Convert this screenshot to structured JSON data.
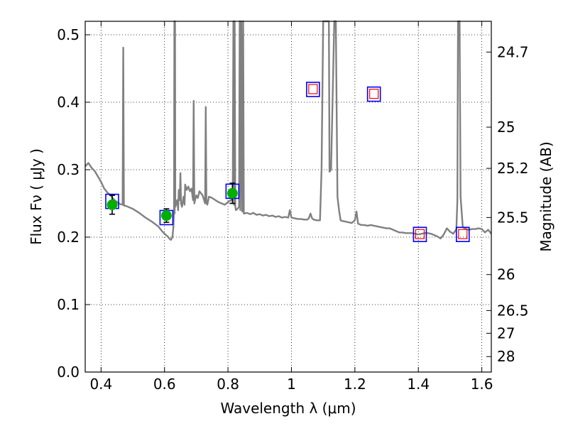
{
  "chart_data": {
    "type": "scatter",
    "title": "",
    "xlabel": "Wavelength  λ (μm)",
    "ylabel": "Flux  Fν  ( μJy )",
    "ylabel_right": "Magnitude (AB)",
    "xlim": [
      0.35,
      1.63
    ],
    "ylim": [
      0.0,
      0.52
    ],
    "grid": true,
    "grid_style": "dotted",
    "x_ticks": [
      0.4,
      0.6,
      0.8,
      1.0,
      1.2,
      1.4,
      1.6
    ],
    "x_tick_labels": [
      "0.4",
      "0.6",
      "0.8",
      "1",
      "1.2",
      "1.4",
      "1.6"
    ],
    "y_ticks": [
      0.0,
      0.1,
      0.2,
      0.3,
      0.4,
      0.5
    ],
    "y_tick_labels": [
      "0.0",
      "0.1",
      "0.2",
      "0.3",
      "0.4",
      "0.5"
    ],
    "right_ticks": [
      {
        "label": "24.7",
        "flux": 0.4744
      },
      {
        "label": "25",
        "flux": 0.3631
      },
      {
        "label": "25.2",
        "flux": 0.302
      },
      {
        "label": "25.5",
        "flux": 0.2291
      },
      {
        "label": "26",
        "flux": 0.1445
      },
      {
        "label": "26.5",
        "flux": 0.0912
      },
      {
        "label": "27",
        "flux": 0.0575
      },
      {
        "label": "28",
        "flux": 0.0229
      }
    ],
    "colors": {
      "spectrum": "#808080",
      "observed_marker": "#00b000",
      "model_box_outer": "#0000ff",
      "model_box_inner": "#ff0000",
      "errorbar": "#000000",
      "grid": "#000000"
    },
    "series": [
      {
        "kind": "spectrum",
        "points": [
          [
            0.35,
            0.305
          ],
          [
            0.36,
            0.31
          ],
          [
            0.37,
            0.303
          ],
          [
            0.38,
            0.298
          ],
          [
            0.39,
            0.29
          ],
          [
            0.4,
            0.282
          ],
          [
            0.41,
            0.272
          ],
          [
            0.42,
            0.266
          ],
          [
            0.43,
            0.262
          ],
          [
            0.44,
            0.256
          ],
          [
            0.45,
            0.252
          ],
          [
            0.46,
            0.249
          ],
          [
            0.468,
            0.248
          ],
          [
            0.47,
            0.481
          ],
          [
            0.472,
            0.247
          ],
          [
            0.48,
            0.246
          ],
          [
            0.5,
            0.242
          ],
          [
            0.52,
            0.236
          ],
          [
            0.54,
            0.229
          ],
          [
            0.56,
            0.223
          ],
          [
            0.58,
            0.216
          ],
          [
            0.59,
            0.21
          ],
          [
            0.6,
            0.205
          ],
          [
            0.61,
            0.201
          ],
          [
            0.615,
            0.198
          ],
          [
            0.62,
            0.196
          ],
          [
            0.625,
            0.2
          ],
          [
            0.628,
            0.215
          ],
          [
            0.63,
            0.24
          ],
          [
            0.631,
            0.54
          ],
          [
            0.632,
            0.235
          ],
          [
            0.633,
            0.54
          ],
          [
            0.634,
            0.245
          ],
          [
            0.64,
            0.255
          ],
          [
            0.643,
            0.24
          ],
          [
            0.645,
            0.27
          ],
          [
            0.648,
            0.255
          ],
          [
            0.65,
            0.295
          ],
          [
            0.652,
            0.25
          ],
          [
            0.655,
            0.245
          ],
          [
            0.66,
            0.26
          ],
          [
            0.663,
            0.248
          ],
          [
            0.665,
            0.278
          ],
          [
            0.67,
            0.27
          ],
          [
            0.675,
            0.275
          ],
          [
            0.68,
            0.268
          ],
          [
            0.685,
            0.272
          ],
          [
            0.69,
            0.255
          ],
          [
            0.692,
            0.402
          ],
          [
            0.694,
            0.25
          ],
          [
            0.7,
            0.262
          ],
          [
            0.705,
            0.258
          ],
          [
            0.71,
            0.268
          ],
          [
            0.72,
            0.262
          ],
          [
            0.728,
            0.25
          ],
          [
            0.73,
            0.393
          ],
          [
            0.732,
            0.252
          ],
          [
            0.735,
            0.248
          ],
          [
            0.74,
            0.26
          ],
          [
            0.75,
            0.258
          ],
          [
            0.76,
            0.255
          ],
          [
            0.77,
            0.252
          ],
          [
            0.78,
            0.25
          ],
          [
            0.79,
            0.248
          ],
          [
            0.8,
            0.252
          ],
          [
            0.81,
            0.255
          ],
          [
            0.815,
            0.26
          ],
          [
            0.817,
            0.54
          ],
          [
            0.819,
            0.248
          ],
          [
            0.821,
            0.54
          ],
          [
            0.823,
            0.245
          ],
          [
            0.825,
            0.24
          ],
          [
            0.83,
            0.242
          ],
          [
            0.835,
            0.245
          ],
          [
            0.837,
            0.54
          ],
          [
            0.839,
            0.24
          ],
          [
            0.842,
            0.54
          ],
          [
            0.845,
            0.238
          ],
          [
            0.848,
            0.54
          ],
          [
            0.85,
            0.235
          ],
          [
            0.86,
            0.236
          ],
          [
            0.87,
            0.234
          ],
          [
            0.88,
            0.236
          ],
          [
            0.89,
            0.233
          ],
          [
            0.9,
            0.234
          ],
          [
            0.91,
            0.232
          ],
          [
            0.92,
            0.233
          ],
          [
            0.93,
            0.231
          ],
          [
            0.94,
            0.232
          ],
          [
            0.95,
            0.23
          ],
          [
            0.96,
            0.231
          ],
          [
            0.97,
            0.229
          ],
          [
            0.98,
            0.23
          ],
          [
            0.99,
            0.229
          ],
          [
            0.995,
            0.24
          ],
          [
            1.0,
            0.229
          ],
          [
            1.01,
            0.228
          ],
          [
            1.02,
            0.227
          ],
          [
            1.03,
            0.227
          ],
          [
            1.04,
            0.226
          ],
          [
            1.05,
            0.226
          ],
          [
            1.055,
            0.228
          ],
          [
            1.06,
            0.235
          ],
          [
            1.065,
            0.228
          ],
          [
            1.07,
            0.226
          ],
          [
            1.08,
            0.225
          ],
          [
            1.09,
            0.225
          ],
          [
            1.095,
            0.3
          ],
          [
            1.1,
            0.54
          ],
          [
            1.118,
            0.54
          ],
          [
            1.12,
            0.297
          ],
          [
            1.125,
            0.3
          ],
          [
            1.135,
            0.54
          ],
          [
            1.14,
            0.54
          ],
          [
            1.145,
            0.26
          ],
          [
            1.15,
            0.24
          ],
          [
            1.155,
            0.225
          ],
          [
            1.16,
            0.224
          ],
          [
            1.17,
            0.223
          ],
          [
            1.18,
            0.222
          ],
          [
            1.19,
            0.221
          ],
          [
            1.2,
            0.225
          ],
          [
            1.205,
            0.238
          ],
          [
            1.21,
            0.22
          ],
          [
            1.22,
            0.218
          ],
          [
            1.23,
            0.218
          ],
          [
            1.24,
            0.217
          ],
          [
            1.25,
            0.218
          ],
          [
            1.26,
            0.217
          ],
          [
            1.27,
            0.216
          ],
          [
            1.28,
            0.215
          ],
          [
            1.29,
            0.214
          ],
          [
            1.3,
            0.213
          ],
          [
            1.31,
            0.213
          ],
          [
            1.32,
            0.211
          ],
          [
            1.33,
            0.209
          ],
          [
            1.34,
            0.207
          ],
          [
            1.35,
            0.207
          ],
          [
            1.36,
            0.206
          ],
          [
            1.37,
            0.206
          ],
          [
            1.38,
            0.206
          ],
          [
            1.39,
            0.205
          ],
          [
            1.4,
            0.204
          ],
          [
            1.41,
            0.205
          ],
          [
            1.42,
            0.206
          ],
          [
            1.43,
            0.206
          ],
          [
            1.44,
            0.205
          ],
          [
            1.45,
            0.203
          ],
          [
            1.46,
            0.201
          ],
          [
            1.47,
            0.198
          ],
          [
            1.48,
            0.204
          ],
          [
            1.49,
            0.213
          ],
          [
            1.5,
            0.208
          ],
          [
            1.51,
            0.205
          ],
          [
            1.52,
            0.212
          ],
          [
            1.523,
            0.255
          ],
          [
            1.525,
            0.54
          ],
          [
            1.53,
            0.54
          ],
          [
            1.533,
            0.26
          ],
          [
            1.54,
            0.215
          ],
          [
            1.55,
            0.212
          ],
          [
            1.56,
            0.211
          ],
          [
            1.57,
            0.212
          ],
          [
            1.58,
            0.212
          ],
          [
            1.59,
            0.213
          ],
          [
            1.6,
            0.212
          ],
          [
            1.61,
            0.207
          ],
          [
            1.62,
            0.211
          ],
          [
            1.63,
            0.205
          ]
        ]
      },
      {
        "kind": "observed",
        "points": [
          {
            "x": 0.435,
            "y": 0.248,
            "yerr_low": 0.014,
            "yerr_high": 0.014
          },
          {
            "x": 0.606,
            "y": 0.232,
            "yerr_low": 0.01,
            "yerr_high": 0.01
          },
          {
            "x": 0.814,
            "y": 0.265,
            "yerr_low": 0.015,
            "yerr_high": 0.015
          }
        ]
      },
      {
        "kind": "model_photometry",
        "points": [
          {
            "x": 0.435,
            "y": 0.253
          },
          {
            "x": 0.606,
            "y": 0.229
          },
          {
            "x": 0.814,
            "y": 0.268
          },
          {
            "x": 1.068,
            "y": 0.419
          },
          {
            "x": 1.26,
            "y": 0.412
          },
          {
            "x": 1.405,
            "y": 0.204
          },
          {
            "x": 1.54,
            "y": 0.204
          }
        ],
        "inner_box_on": [
          false,
          false,
          false,
          true,
          true,
          true,
          true
        ]
      }
    ]
  }
}
